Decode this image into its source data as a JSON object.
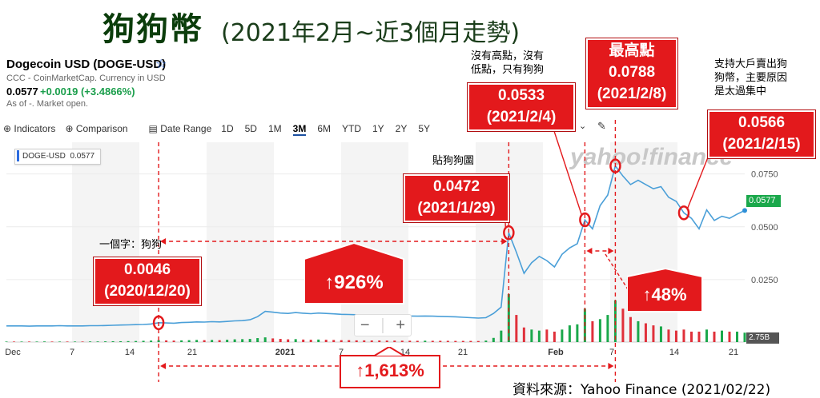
{
  "title": {
    "main": "狗狗幣",
    "sub": "(2021年2月~近3個月走勢)"
  },
  "quote": {
    "name": "Dogecoin USD (DOGE-USD)",
    "source": "CCC - CoinMarketCap. Currency in USD",
    "price": "0.0577",
    "change": "+0.0019 (+3.4866%)",
    "as_of": "As of -. Market open."
  },
  "toolbar": {
    "indicators": "Indicators",
    "comparison": "Comparison",
    "date_range": "Date Range",
    "ranges": [
      "1D",
      "5D",
      "1M",
      "3M",
      "6M",
      "YTD",
      "1Y",
      "2Y",
      "5Y"
    ],
    "active_range": "3M"
  },
  "symbol_box": {
    "symbol": "DOGE-USD",
    "value": "0.0577"
  },
  "price_tag": "0.0577",
  "volume_tag": "2.75B",
  "icons": {
    "star": "star-icon",
    "indicators": "plus-circle-icon",
    "comparison": "plus-circle-icon",
    "date_range": "calendar-icon",
    "draw": "pencil-icon",
    "zoom_out": "minus-icon",
    "zoom_in": "plus-icon"
  },
  "colors": {
    "price_line": "#4a9fd8",
    "annotation_red": "#e3191c",
    "volume_green": "#1aa84b",
    "volume_red": "#e0303a",
    "price_tag": "#1aa84b"
  },
  "chart_data": {
    "type": "line",
    "x_tick_labels": [
      "Dec",
      "7",
      "14",
      "21",
      "2021",
      "7",
      "14",
      "21",
      "Feb",
      "7",
      "14",
      "21"
    ],
    "y_tick_labels": [
      "0.0750",
      "0.0500",
      "0.0250"
    ],
    "ylim": [
      0.0,
      0.09
    ],
    "series": [
      {
        "values": [
          0.0031,
          0.0031,
          0.0031,
          0.003,
          0.0031,
          0.0031,
          0.0031,
          0.0032,
          0.0031,
          0.0031,
          0.0031,
          0.0032,
          0.0032,
          0.0033,
          0.0034,
          0.0035,
          0.0036,
          0.0037,
          0.0038,
          0.004,
          0.0046,
          0.0045,
          0.0044,
          0.0047,
          0.0048,
          0.005,
          0.0049,
          0.0051,
          0.005,
          0.0052,
          0.0055,
          0.0056,
          0.006,
          0.0075,
          0.01,
          0.0096,
          0.0092,
          0.009,
          0.0094,
          0.0091,
          0.0089,
          0.0092,
          0.009,
          0.0088,
          0.0086,
          0.0085,
          0.0084,
          0.0083,
          0.0082,
          0.0082,
          0.0081,
          0.008,
          0.0079,
          0.0078,
          0.0077,
          0.0078,
          0.0077,
          0.0076,
          0.0075,
          0.0074,
          0.0072,
          0.007,
          0.0068,
          0.007,
          0.009,
          0.012,
          0.0472,
          0.038,
          0.028,
          0.033,
          0.036,
          0.034,
          0.031,
          0.037,
          0.04,
          0.042,
          0.0533,
          0.049,
          0.06,
          0.065,
          0.0788,
          0.074,
          0.07,
          0.072,
          0.07,
          0.068,
          0.069,
          0.064,
          0.062,
          0.0566,
          0.054,
          0.049,
          0.058,
          0.053,
          0.055,
          0.054,
          0.056,
          0.0577
        ]
      }
    ],
    "volume": {
      "values": [
        0.05,
        0.05,
        0.05,
        0.05,
        0.05,
        0.06,
        0.05,
        0.05,
        0.05,
        0.05,
        0.05,
        0.06,
        0.06,
        0.07,
        0.08,
        0.08,
        0.09,
        0.1,
        0.12,
        0.14,
        0.18,
        0.16,
        0.14,
        0.16,
        0.18,
        0.2,
        0.18,
        0.2,
        0.18,
        0.22,
        0.26,
        0.28,
        0.3,
        0.38,
        0.45,
        0.35,
        0.3,
        0.26,
        0.28,
        0.24,
        0.22,
        0.24,
        0.22,
        0.2,
        0.18,
        0.18,
        0.16,
        0.16,
        0.15,
        0.15,
        0.14,
        0.14,
        0.13,
        0.13,
        0.12,
        0.13,
        0.12,
        0.12,
        0.12,
        0.11,
        0.11,
        0.11,
        0.1,
        0.14,
        0.4,
        1.1,
        4.6,
        2.6,
        1.4,
        1.2,
        1.1,
        1.2,
        1.0,
        1.2,
        1.6,
        1.7,
        3.2,
        2.0,
        2.2,
        2.6,
        4.0,
        3.2,
        2.4,
        2.0,
        1.8,
        1.6,
        1.5,
        1.2,
        1.1,
        1.2,
        1.0,
        1.0,
        1.2,
        1.0,
        1.1,
        1.0,
        1.0,
        0.9
      ],
      "up": [
        1,
        0,
        1,
        0,
        1,
        1,
        0,
        1,
        0,
        1,
        0,
        1,
        1,
        1,
        1,
        1,
        1,
        1,
        1,
        1,
        1,
        0,
        0,
        1,
        1,
        1,
        0,
        1,
        0,
        1,
        1,
        1,
        1,
        1,
        1,
        0,
        0,
        0,
        1,
        0,
        0,
        1,
        0,
        0,
        0,
        0,
        0,
        0,
        0,
        0,
        0,
        0,
        0,
        0,
        0,
        1,
        0,
        0,
        0,
        0,
        0,
        0,
        0,
        1,
        1,
        1,
        1,
        0,
        0,
        1,
        1,
        0,
        0,
        1,
        1,
        1,
        1,
        0,
        1,
        1,
        1,
        0,
        0,
        1,
        0,
        0,
        1,
        0,
        0,
        0,
        0,
        0,
        1,
        0,
        1,
        0,
        1,
        1
      ]
    },
    "annotations": [
      {
        "value": "0.0046",
        "date": "(2020/12/20)"
      },
      {
        "value": "0.0472",
        "date": "(2021/1/29)"
      },
      {
        "value": "0.0533",
        "date": "(2021/2/4)"
      },
      {
        "value": "0.0788",
        "date": "(2021/2/8)",
        "label": "最高點"
      },
      {
        "value": "0.0566",
        "date": "(2021/2/15)"
      }
    ],
    "notes": {
      "yi_ge_zi": "一個字：狗狗",
      "tie_gou_gou_tu": "貼狗狗圖",
      "no_high": [
        "沒有高點，沒有",
        "低點，只有狗狗"
      ],
      "big_holders": [
        "支持大戶賣出狗",
        "狗幣，主要原因",
        "是太過集中"
      ]
    },
    "changes": {
      "pct_926": "↑926%",
      "pct_48": "↑48%",
      "pct_1613": "↑1,613%"
    }
  },
  "source_note": "資料來源：Yahoo Finance (2021/02/22)",
  "watermark": "yahoo!finance"
}
